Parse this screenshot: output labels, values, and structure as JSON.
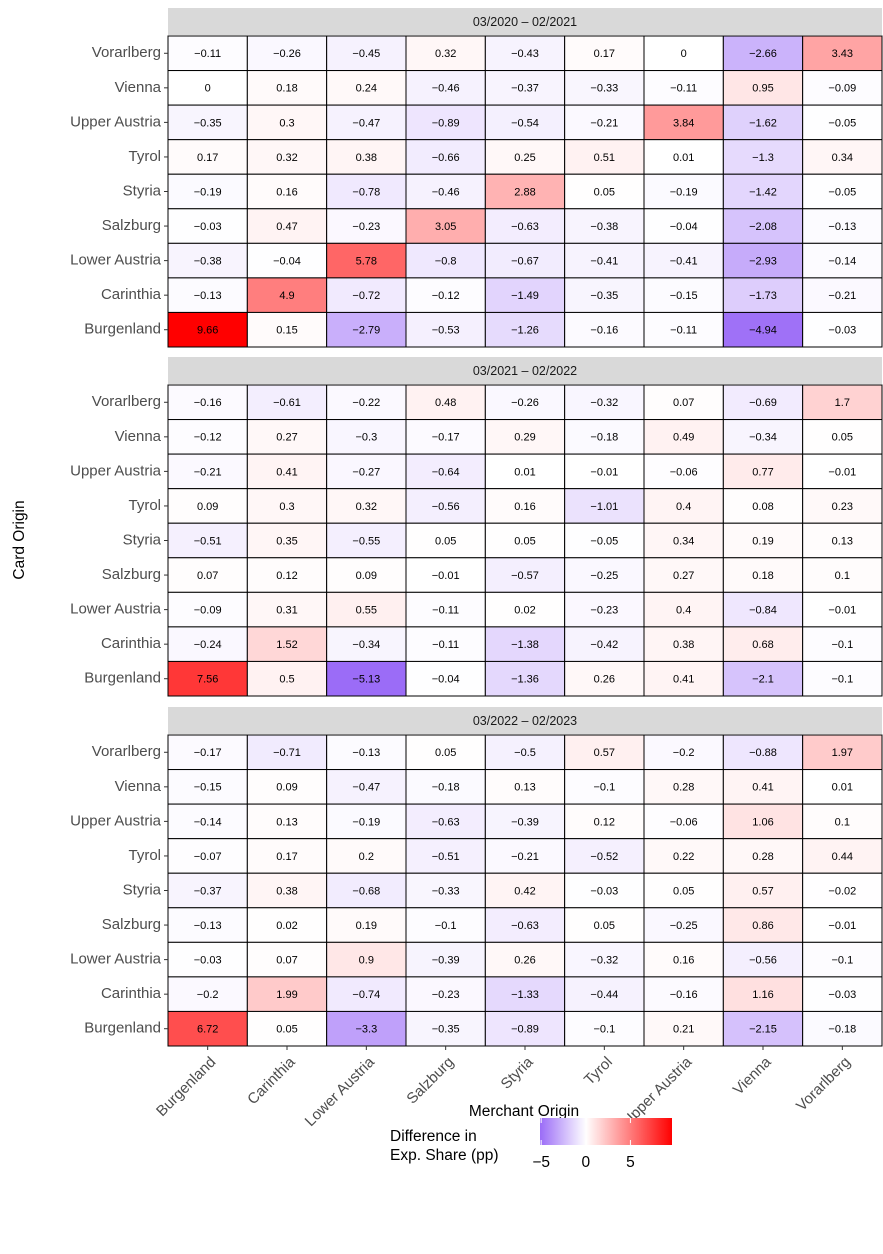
{
  "chart_data": {
    "type": "heatmap",
    "x_label": "Merchant Origin",
    "y_label": "Card Origin",
    "x_categories": [
      "Burgenland",
      "Carinthia",
      "Lower Austria",
      "Salzburg",
      "Styria",
      "Tyrol",
      "Upper Austria",
      "Vienna",
      "Vorarlberg"
    ],
    "y_categories": [
      "Vorarlberg",
      "Vienna",
      "Upper Austria",
      "Tyrol",
      "Styria",
      "Salzburg",
      "Lower Austria",
      "Carinthia",
      "Burgenland"
    ],
    "facets": [
      {
        "title": "03/2020 – 02/2021",
        "values": [
          [
            -0.11,
            -0.26,
            -0.45,
            0.32,
            -0.43,
            0.17,
            0,
            -2.66,
            3.43
          ],
          [
            0,
            0.18,
            0.24,
            -0.46,
            -0.37,
            -0.33,
            -0.11,
            0.95,
            -0.09
          ],
          [
            -0.35,
            0.3,
            -0.47,
            -0.89,
            -0.54,
            -0.21,
            3.84,
            -1.62,
            -0.05
          ],
          [
            0.17,
            0.32,
            0.38,
            -0.66,
            0.25,
            0.51,
            0.01,
            -1.3,
            0.34
          ],
          [
            -0.19,
            0.16,
            -0.78,
            -0.46,
            2.88,
            0.05,
            -0.19,
            -1.42,
            -0.05
          ],
          [
            -0.03,
            0.47,
            -0.23,
            3.05,
            -0.63,
            -0.38,
            -0.04,
            -2.08,
            -0.13
          ],
          [
            -0.38,
            -0.04,
            5.78,
            -0.8,
            -0.67,
            -0.41,
            -0.41,
            -2.93,
            -0.14
          ],
          [
            -0.13,
            4.9,
            -0.72,
            -0.12,
            -1.49,
            -0.35,
            -0.15,
            -1.73,
            -0.21
          ],
          [
            9.66,
            0.15,
            -2.79,
            -0.53,
            -1.26,
            -0.16,
            -0.11,
            -4.94,
            -0.03
          ]
        ],
        "value_labels": [
          [
            "−0.11",
            "−0.26",
            "−0.45",
            "0.32",
            "−0.43",
            "0.17",
            "0",
            "−2.66",
            "3.43"
          ],
          [
            "0",
            "0.18",
            "0.24",
            "−0.46",
            "−0.37",
            "−0.33",
            "−0.11",
            "0.95",
            "−0.09"
          ],
          [
            "−0.35",
            "0.3",
            "−0.47",
            "−0.89",
            "−0.54",
            "−0.21",
            "3.84",
            "−1.62",
            "−0.05"
          ],
          [
            "0.17",
            "0.32",
            "0.38",
            "−0.66",
            "0.25",
            "0.51",
            "0.01",
            "−1.3",
            "0.34"
          ],
          [
            "−0.19",
            "0.16",
            "−0.78",
            "−0.46",
            "2.88",
            "0.05",
            "−0.19",
            "−1.42",
            "−0.05"
          ],
          [
            "−0.03",
            "0.47",
            "−0.23",
            "3.05",
            "−0.63",
            "−0.38",
            "−0.04",
            "−2.08",
            "−0.13"
          ],
          [
            "−0.38",
            "−0.04",
            "5.78",
            "−0.8",
            "−0.67",
            "−0.41",
            "−0.41",
            "−2.93",
            "−0.14"
          ],
          [
            "−0.13",
            "4.9",
            "−0.72",
            "−0.12",
            "−1.49",
            "−0.35",
            "−0.15",
            "−1.73",
            "−0.21"
          ],
          [
            "9.66",
            "0.15",
            "−2.79",
            "−0.53",
            "−1.26",
            "−0.16",
            "−0.11",
            "−4.94",
            "−0.03"
          ]
        ]
      },
      {
        "title": "03/2021 – 02/2022",
        "values": [
          [
            -0.16,
            -0.61,
            -0.22,
            0.48,
            -0.26,
            -0.32,
            0.07,
            -0.69,
            1.7
          ],
          [
            -0.12,
            0.27,
            -0.3,
            -0.17,
            0.29,
            -0.18,
            0.49,
            -0.34,
            0.05
          ],
          [
            -0.21,
            0.41,
            -0.27,
            -0.64,
            0.01,
            -0.01,
            -0.06,
            0.77,
            -0.01
          ],
          [
            0.09,
            0.3,
            0.32,
            -0.56,
            0.16,
            -1.01,
            0.4,
            0.08,
            0.23
          ],
          [
            -0.51,
            0.35,
            -0.55,
            0.05,
            0.05,
            -0.05,
            0.34,
            0.19,
            0.13
          ],
          [
            0.07,
            0.12,
            0.09,
            -0.01,
            -0.57,
            -0.25,
            0.27,
            0.18,
            0.1
          ],
          [
            -0.09,
            0.31,
            0.55,
            -0.11,
            0.02,
            -0.23,
            0.4,
            -0.84,
            -0.01
          ],
          [
            -0.24,
            1.52,
            -0.34,
            -0.11,
            -1.38,
            -0.42,
            0.38,
            0.68,
            -0.1
          ],
          [
            7.56,
            0.5,
            -5.13,
            -0.04,
            -1.36,
            0.26,
            0.41,
            -2.1,
            -0.1
          ]
        ],
        "value_labels": [
          [
            "−0.16",
            "−0.61",
            "−0.22",
            "0.48",
            "−0.26",
            "−0.32",
            "0.07",
            "−0.69",
            "1.7"
          ],
          [
            "−0.12",
            "0.27",
            "−0.3",
            "−0.17",
            "0.29",
            "−0.18",
            "0.49",
            "−0.34",
            "0.05"
          ],
          [
            "−0.21",
            "0.41",
            "−0.27",
            "−0.64",
            "0.01",
            "−0.01",
            "−0.06",
            "0.77",
            "−0.01"
          ],
          [
            "0.09",
            "0.3",
            "0.32",
            "−0.56",
            "0.16",
            "−1.01",
            "0.4",
            "0.08",
            "0.23"
          ],
          [
            "−0.51",
            "0.35",
            "−0.55",
            "0.05",
            "0.05",
            "−0.05",
            "0.34",
            "0.19",
            "0.13"
          ],
          [
            "0.07",
            "0.12",
            "0.09",
            "−0.01",
            "−0.57",
            "−0.25",
            "0.27",
            "0.18",
            "0.1"
          ],
          [
            "−0.09",
            "0.31",
            "0.55",
            "−0.11",
            "0.02",
            "−0.23",
            "0.4",
            "−0.84",
            "−0.01"
          ],
          [
            "−0.24",
            "1.52",
            "−0.34",
            "−0.11",
            "−1.38",
            "−0.42",
            "0.38",
            "0.68",
            "−0.1"
          ],
          [
            "7.56",
            "0.5",
            "−5.13",
            "−0.04",
            "−1.36",
            "0.26",
            "0.41",
            "−2.1",
            "−0.1"
          ]
        ]
      },
      {
        "title": "03/2022 – 02/2023",
        "values": [
          [
            -0.17,
            -0.71,
            -0.13,
            0.05,
            -0.5,
            0.57,
            -0.2,
            -0.88,
            1.97
          ],
          [
            -0.15,
            0.09,
            -0.47,
            -0.18,
            0.13,
            -0.1,
            0.28,
            0.41,
            0.01
          ],
          [
            -0.14,
            0.13,
            -0.19,
            -0.63,
            -0.39,
            0.12,
            -0.06,
            1.06,
            0.1
          ],
          [
            -0.07,
            0.17,
            0.2,
            -0.51,
            -0.21,
            -0.52,
            0.22,
            0.28,
            0.44
          ],
          [
            -0.37,
            0.38,
            -0.68,
            -0.33,
            0.42,
            -0.03,
            0.05,
            0.57,
            -0.02
          ],
          [
            -0.13,
            0.02,
            0.19,
            -0.1,
            -0.63,
            0.05,
            -0.25,
            0.86,
            -0.01
          ],
          [
            -0.03,
            0.07,
            0.9,
            -0.39,
            0.26,
            -0.32,
            0.16,
            -0.56,
            -0.1
          ],
          [
            -0.2,
            1.99,
            -0.74,
            -0.23,
            -1.33,
            -0.44,
            -0.16,
            1.16,
            -0.03
          ],
          [
            6.72,
            0.05,
            -3.3,
            -0.35,
            -0.89,
            -0.1,
            0.21,
            -2.15,
            -0.18
          ]
        ],
        "value_labels": [
          [
            "−0.17",
            "−0.71",
            "−0.13",
            "0.05",
            "−0.5",
            "0.57",
            "−0.2",
            "−0.88",
            "1.97"
          ],
          [
            "−0.15",
            "0.09",
            "−0.47",
            "−0.18",
            "0.13",
            "−0.1",
            "0.28",
            "0.41",
            "0.01"
          ],
          [
            "−0.14",
            "0.13",
            "−0.19",
            "−0.63",
            "−0.39",
            "0.12",
            "−0.06",
            "1.06",
            "0.1"
          ],
          [
            "−0.07",
            "0.17",
            "0.2",
            "−0.51",
            "−0.21",
            "−0.52",
            "0.22",
            "0.28",
            "0.44"
          ],
          [
            "−0.37",
            "0.38",
            "−0.68",
            "−0.33",
            "0.42",
            "−0.03",
            "0.05",
            "0.57",
            "−0.02"
          ],
          [
            "−0.13",
            "0.02",
            "0.19",
            "−0.1",
            "−0.63",
            "0.05",
            "−0.25",
            "0.86",
            "−0.01"
          ],
          [
            "−0.03",
            "0.07",
            "0.9",
            "−0.39",
            "0.26",
            "−0.32",
            "0.16",
            "−0.56",
            "−0.1"
          ],
          [
            "−0.2",
            "1.99",
            "−0.74",
            "−0.23",
            "−1.33",
            "−0.44",
            "−0.16",
            "1.16",
            "−0.03"
          ],
          [
            "6.72",
            "0.05",
            "−3.3",
            "−0.35",
            "−0.89",
            "−0.1",
            "0.21",
            "−2.15",
            "−0.18"
          ]
        ]
      }
    ],
    "legend": {
      "title": [
        "Difference in",
        "Exp. Share (pp)"
      ],
      "lim": [
        -5.13,
        9.66
      ],
      "ticks": [
        {
          "value": -5,
          "label": "−5"
        },
        0,
        5
      ],
      "color_low": "#9b6cf7",
      "color_mid": "#ffffff",
      "color_high": "#ff0000",
      "midpoint": 0
    }
  }
}
